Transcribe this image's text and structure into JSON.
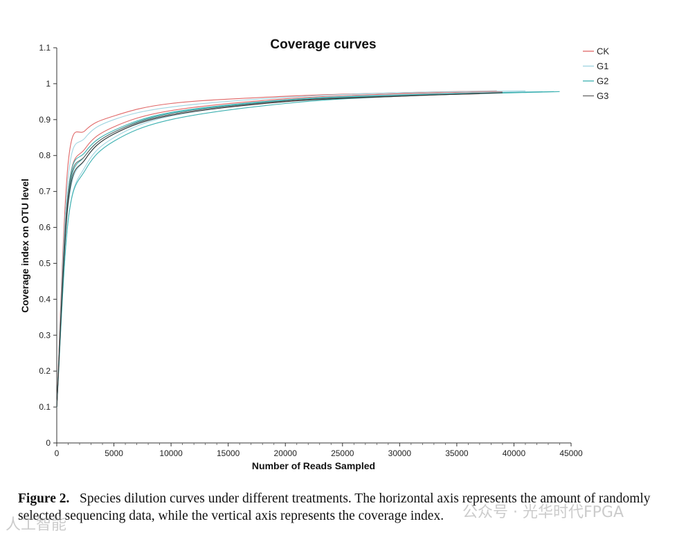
{
  "chart_data": {
    "type": "line",
    "title": "Coverage curves",
    "xlabel": "Number of Reads Sampled",
    "ylabel": "Coverage index on OTU level",
    "xlim": [
      0,
      45000
    ],
    "ylim": [
      0,
      1.1
    ],
    "xticks": [
      0,
      5000,
      10000,
      15000,
      20000,
      25000,
      30000,
      35000,
      40000,
      45000
    ],
    "yticks": [
      0,
      0.1,
      0.2,
      0.3,
      0.4,
      0.5,
      0.6,
      0.7,
      0.8,
      0.9,
      1,
      1.1
    ],
    "ytick_labels": [
      "0",
      "0.1",
      "0.2",
      "0.3",
      "0.4",
      "0.5",
      "0.6",
      "0.7",
      "0.8",
      "0.9",
      "1",
      "1.1"
    ],
    "grid": false,
    "legend_position": "top-right",
    "legend": [
      {
        "name": "CK",
        "color": "#e06666"
      },
      {
        "name": "G1",
        "color": "#9fd4e0"
      },
      {
        "name": "G2",
        "color": "#3ab0b0"
      },
      {
        "name": "G3",
        "color": "#666666"
      }
    ],
    "series": [
      {
        "name": "CK",
        "group": "CK",
        "color": "#e06666",
        "x": [
          0,
          1000,
          2500,
          5000,
          10000,
          20000,
          30000,
          38500
        ],
        "y": [
          0.1,
          0.78,
          0.87,
          0.91,
          0.945,
          0.965,
          0.975,
          0.98
        ]
      },
      {
        "name": "CK",
        "group": "CK",
        "color": "#e06666",
        "x": [
          0,
          1000,
          2500,
          5000,
          10000,
          20000,
          30000,
          39000
        ],
        "y": [
          0.1,
          0.7,
          0.82,
          0.88,
          0.925,
          0.958,
          0.972,
          0.978
        ]
      },
      {
        "name": "G1",
        "group": "G1",
        "color": "#9fd4e0",
        "x": [
          0,
          1000,
          2500,
          5000,
          10000,
          20000,
          30000,
          41000
        ],
        "y": [
          0.1,
          0.74,
          0.85,
          0.9,
          0.935,
          0.962,
          0.975,
          0.98
        ]
      },
      {
        "name": "G1",
        "group": "G1",
        "color": "#9fd4e0",
        "x": [
          0,
          1000,
          2500,
          5000,
          10000,
          20000,
          30000,
          42500
        ],
        "y": [
          0.1,
          0.66,
          0.79,
          0.86,
          0.915,
          0.955,
          0.97,
          0.978
        ]
      },
      {
        "name": "G1",
        "group": "G1",
        "color": "#9fd4e0",
        "x": [
          0,
          1000,
          2500,
          5000,
          10000,
          20000,
          30000,
          38000
        ],
        "y": [
          0.1,
          0.62,
          0.77,
          0.85,
          0.91,
          0.952,
          0.968,
          0.975
        ]
      },
      {
        "name": "G2",
        "group": "G2",
        "color": "#3ab0b0",
        "x": [
          0,
          1000,
          2500,
          5000,
          10000,
          20000,
          30000,
          43500
        ],
        "y": [
          0.1,
          0.7,
          0.81,
          0.87,
          0.92,
          0.955,
          0.968,
          0.978
        ]
      },
      {
        "name": "G2",
        "group": "G2",
        "color": "#3ab0b0",
        "x": [
          0,
          1000,
          2500,
          5000,
          10000,
          20000,
          30000,
          44000
        ],
        "y": [
          0.1,
          0.62,
          0.76,
          0.84,
          0.9,
          0.945,
          0.965,
          0.978
        ]
      },
      {
        "name": "G2",
        "group": "G2",
        "color": "#3ab0b0",
        "x": [
          0,
          1000,
          2500,
          5000,
          10000,
          20000,
          30000,
          40500
        ],
        "y": [
          0.1,
          0.68,
          0.8,
          0.865,
          0.918,
          0.953,
          0.968,
          0.976
        ]
      },
      {
        "name": "G3",
        "group": "G3",
        "color": "#666666",
        "x": [
          0,
          1000,
          2500,
          5000,
          10000,
          20000,
          30000,
          37000
        ],
        "y": [
          0.1,
          0.69,
          0.8,
          0.865,
          0.915,
          0.952,
          0.966,
          0.972
        ]
      },
      {
        "name": "G3",
        "group": "G3",
        "color": "#333333",
        "x": [
          0,
          1000,
          2500,
          5000,
          10000,
          20000,
          30000,
          39000
        ],
        "y": [
          0.1,
          0.67,
          0.79,
          0.86,
          0.912,
          0.95,
          0.965,
          0.975
        ]
      }
    ]
  },
  "caption": {
    "label": "Figure 2.",
    "text": "Species dilution curves under different treatments. The horizontal axis represents the amount of randomly selected sequencing data, while the vertical axis represents the coverage index."
  },
  "watermark": {
    "left": "人工智能",
    "right": "公众号 · 光华时代FPGA"
  }
}
